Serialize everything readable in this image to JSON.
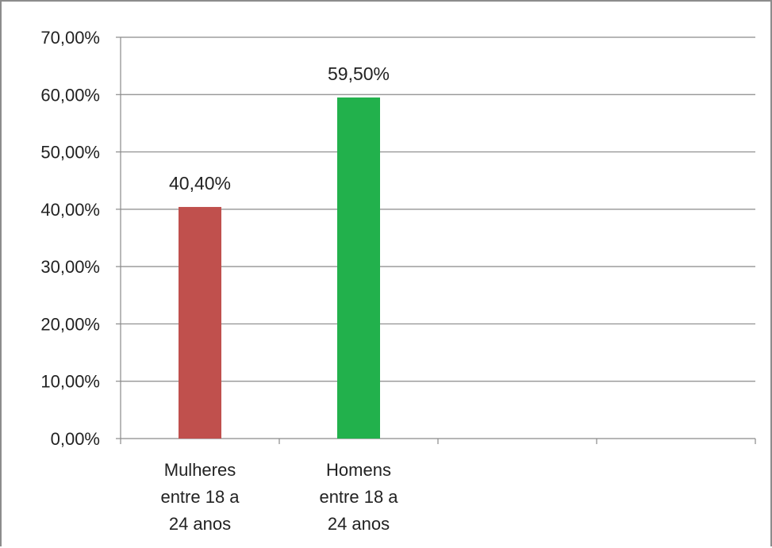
{
  "chart_data": {
    "type": "bar",
    "categories": [
      [
        "Mulheres",
        "entre 18 a",
        "24 anos"
      ],
      [
        "Homens",
        "entre 18 a",
        "24 anos"
      ],
      [],
      []
    ],
    "values": [
      40.4,
      59.5,
      null,
      null
    ],
    "data_labels": [
      "40,40%",
      "59,50%",
      "",
      ""
    ],
    "colors": [
      "#c0504d",
      "#22b14c"
    ],
    "ylim": [
      0,
      70
    ],
    "yticks": [
      0,
      10,
      20,
      30,
      40,
      50,
      60,
      70
    ],
    "ytick_labels": [
      "0,00%",
      "10,00%",
      "20,00%",
      "30,00%",
      "40,00%",
      "50,00%",
      "60,00%",
      "70,00%"
    ],
    "grid": true,
    "legend": "none",
    "title": "",
    "xlabel": "",
    "ylabel": ""
  }
}
